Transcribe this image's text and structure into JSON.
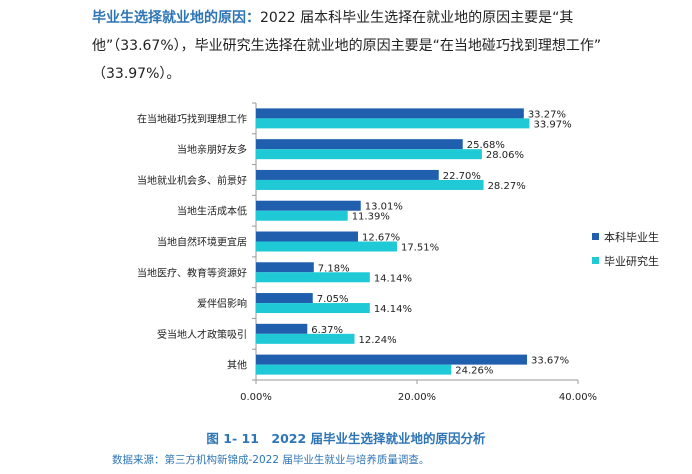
{
  "intro": {
    "highlight": "毕业生选择就业地的原因：",
    "line1_rest": "2022 届本科毕业生选择在就业地的原因主要是“其",
    "line2": "他”（33.67%），毕业研究生选择在就业地的原因主要是“在当地碰巧找到理想工作”",
    "line3": "（33.97%）。"
  },
  "caption": "图 1- 11　2022 届毕业生选择就业地的原因分析",
  "source": "数据来源：第三方机构新锦成-2022 届毕业生就业与培养质量调查。",
  "chart_data": {
    "type": "bar",
    "orientation": "horizontal",
    "categories": [
      "在当地碰巧找到理想工作",
      "当地亲朋好友多",
      "当地就业机会多、前景好",
      "当地生活成本低",
      "当地自然环境更宜居",
      "当地医疗、教育等资源好",
      "爱伴侣影响",
      "受当地人才政策吸引",
      "其他"
    ],
    "series": [
      {
        "name": "本科毕业生",
        "color": "#1f5fad",
        "values": [
          33.27,
          25.68,
          22.7,
          13.01,
          12.67,
          7.18,
          7.05,
          6.37,
          33.67
        ],
        "labels": [
          "33.27%",
          "25.68%",
          "22.70%",
          "13.01%",
          "12.67%",
          "7.18%",
          "7.05%",
          "6.37%",
          "33.67%"
        ]
      },
      {
        "name": "毕业研究生",
        "color": "#1fc9d6",
        "values": [
          33.97,
          28.06,
          28.27,
          11.39,
          17.51,
          14.14,
          14.14,
          12.24,
          24.26
        ],
        "labels": [
          "33.97%",
          "28.06%",
          "28.27%",
          "11.39%",
          "17.51%",
          "14.14%",
          "14.14%",
          "12.24%",
          "24.26%"
        ]
      }
    ],
    "xlim": [
      0,
      40
    ],
    "xticks": [
      0,
      20,
      40
    ],
    "xtick_labels": [
      "0.00%",
      "20.00%",
      "40.00%"
    ],
    "legend_position": "right",
    "grid": false
  }
}
